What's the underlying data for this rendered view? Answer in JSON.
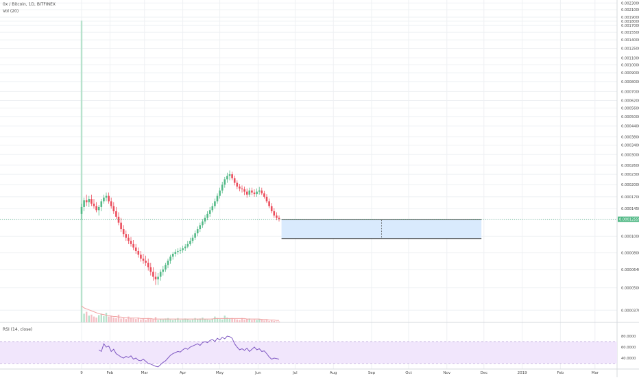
{
  "symbol_title": "0x / Bitcoin, 1D, BITFINEX",
  "volume_label": "Vol (20)",
  "rsi_title": "RSI (14, close)",
  "current_price_label": "0.00012559",
  "colors": {
    "up": "#53b987",
    "down": "#eb4d5c",
    "volume_up": "#b7e2cc",
    "volume_down": "#f4bfc4",
    "volume_ma": "#f0a0a0",
    "rsi_line": "#7e57c2",
    "rsi_band": "#f1e6fc",
    "projection_fill": "#d9eafd",
    "projection_border": "#2e2e2e",
    "price_tag": "#53b987",
    "grid": "#eef0f3"
  },
  "chart_data": [
    {
      "type": "candlestick",
      "title": "0x / Bitcoin, 1D, BITFINEX",
      "x_tick_labels": [
        "9",
        "Feb",
        "Mar",
        "Apr",
        "May",
        "Jun",
        "Jul",
        "Aug",
        "Sep",
        "Oct",
        "Nov",
        "Dec",
        "2019",
        "Feb",
        "Mar"
      ],
      "y_scale": "log",
      "y_tick_labels": [
        "0.00230000",
        "0.00210000",
        "0.00190000",
        "0.00180000",
        "0.00170000",
        "0.00155000",
        "0.00140000",
        "0.00125000",
        "0.00110000",
        "0.00100000",
        "0.00090000",
        "0.00080000",
        "0.00070000",
        "0.00062000",
        "0.00056000",
        "0.00050000",
        "0.00044000",
        "0.00038000",
        "0.00034000",
        "0.00030000",
        "0.00026000",
        "0.00023000",
        "0.00020000",
        "0.00017000",
        "0.00014500",
        "0.00012500",
        "0.00010000",
        "0.00008000",
        "0.00006400",
        "0.00005000",
        "0.00003700"
      ],
      "ylim": [
        3.2e-05,
        0.00235
      ],
      "grid": true,
      "series": [
        {
          "x": [
            "2018-01-09",
            "2018-01-11",
            "2018-01-13",
            "2018-01-15",
            "2018-01-17",
            "2018-01-19",
            "2018-01-21",
            "2018-01-23",
            "2018-01-25",
            "2018-01-27",
            "2018-01-29",
            "2018-01-31",
            "2018-02-02",
            "2018-02-04",
            "2018-02-06",
            "2018-02-08",
            "2018-02-10",
            "2018-02-12",
            "2018-02-14",
            "2018-02-16",
            "2018-02-18",
            "2018-02-20",
            "2018-02-22",
            "2018-02-24",
            "2018-02-26",
            "2018-02-28",
            "2018-03-02",
            "2018-03-04",
            "2018-03-06",
            "2018-03-08",
            "2018-03-10",
            "2018-03-12",
            "2018-03-14",
            "2018-03-16",
            "2018-03-18",
            "2018-03-20",
            "2018-03-22",
            "2018-03-24",
            "2018-03-26",
            "2018-03-28",
            "2018-03-30",
            "2018-04-01",
            "2018-04-03",
            "2018-04-05",
            "2018-04-07",
            "2018-04-09",
            "2018-04-11",
            "2018-04-13",
            "2018-04-15",
            "2018-04-17",
            "2018-04-19",
            "2018-04-21",
            "2018-04-23",
            "2018-04-25",
            "2018-04-27",
            "2018-04-29",
            "2018-05-01",
            "2018-05-03",
            "2018-05-05",
            "2018-05-07",
            "2018-05-09",
            "2018-05-11",
            "2018-05-13",
            "2018-05-15",
            "2018-05-17",
            "2018-05-19",
            "2018-05-21",
            "2018-05-23",
            "2018-05-25",
            "2018-05-27",
            "2018-05-29",
            "2018-05-31",
            "2018-06-02",
            "2018-06-04",
            "2018-06-06",
            "2018-06-08",
            "2018-06-10",
            "2018-06-12",
            "2018-06-14",
            "2018-06-16",
            "2018-06-18"
          ],
          "open": [
            0.000135,
            0.000148,
            0.000162,
            0.000158,
            0.000165,
            0.000155,
            0.00015,
            0.000142,
            0.000148,
            0.00016,
            0.000168,
            0.000172,
            0.00016,
            0.00015,
            0.00014,
            0.00013,
            0.00012,
            0.00011,
            0.000103,
            9.8e-05,
            9.4e-05,
            9e-05,
            8.6e-05,
            8.2e-05,
            7.8e-05,
            7.4e-05,
            7.2e-05,
            7e-05,
            6.6e-05,
            6.2e-05,
            5.8e-05,
            5.6e-05,
            5.8e-05,
            6.2e-05,
            6.4e-05,
            6.8e-05,
            7.2e-05,
            7.6e-05,
            7.9e-05,
            8.1e-05,
            8.2e-05,
            8.3e-05,
            8.5e-05,
            8.7e-05,
            9e-05,
            9.4e-05,
            9.8e-05,
            0.000104,
            0.00011,
            0.000116,
            0.000122,
            0.000128,
            0.000135,
            0.000142,
            0.00015,
            0.00016,
            0.000172,
            0.000185,
            0.0002,
            0.000215,
            0.000225,
            0.00023,
            0.000218,
            0.000205,
            0.000195,
            0.00019,
            0.000188,
            0.000182,
            0.000175,
            0.000185,
            0.00018,
            0.000176,
            0.000182,
            0.000185,
            0.000178,
            0.00017,
            0.00016,
            0.00015,
            0.00014,
            0.000132,
            0.000128
          ],
          "high": [
            0.000155,
            0.000168,
            0.000175,
            0.000172,
            0.000175,
            0.000165,
            0.000158,
            0.000152,
            0.000165,
            0.000175,
            0.00018,
            0.00018,
            0.000168,
            0.000158,
            0.000148,
            0.000138,
            0.000128,
            0.000116,
            0.000108,
            0.000103,
            9.9e-05,
            9.5e-05,
            9e-05,
            8.6e-05,
            8.2e-05,
            7.9e-05,
            7.7e-05,
            7.4e-05,
            7e-05,
            6.6e-05,
            6.2e-05,
            6.1e-05,
            6.4e-05,
            6.7e-05,
            7e-05,
            7.4e-05,
            7.8e-05,
            8.1e-05,
            8.4e-05,
            8.5e-05,
            8.6e-05,
            8.8e-05,
            9e-05,
            9.4e-05,
            9.8e-05,
            0.000102,
            0.000108,
            0.000114,
            0.00012,
            0.000126,
            0.000133,
            0.00014,
            0.000148,
            0.000156,
            0.000166,
            0.000178,
            0.000192,
            0.000208,
            0.000222,
            0.000235,
            0.000242,
            0.000238,
            0.000226,
            0.000212,
            0.000202,
            0.000198,
            0.000195,
            0.00019,
            0.000192,
            0.000192,
            0.000188,
            0.00019,
            0.000194,
            0.000192,
            0.000184,
            0.000176,
            0.000166,
            0.000156,
            0.000146,
            0.000138,
            0.000132
          ],
          "low": [
            0.000125,
            0.00014,
            0.00015,
            0.000148,
            0.00015,
            0.000145,
            0.000138,
            0.000132,
            0.00014,
            0.000155,
            0.00016,
            0.000155,
            0.000145,
            0.000135,
            0.000126,
            0.000116,
            0.000106,
            9.9e-05,
            9.4e-05,
            9e-05,
            8.7e-05,
            8.3e-05,
            7.9e-05,
            7.5e-05,
            7.1e-05,
            6.9e-05,
            6.7e-05,
            6.3e-05,
            5.9e-05,
            5.5e-05,
            5.2e-05,
            5.2e-05,
            5.5e-05,
            5.9e-05,
            6.2e-05,
            6.5e-05,
            6.9e-05,
            7.3e-05,
            7.6e-05,
            7.8e-05,
            7.9e-05,
            8e-05,
            8.2e-05,
            8.5e-05,
            8.8e-05,
            9.1e-05,
            9.5e-05,
            0.0001,
            0.000106,
            0.000112,
            0.000118,
            0.000124,
            0.00013,
            0.000138,
            0.000145,
            0.000155,
            0.000166,
            0.000178,
            0.000192,
            0.000205,
            0.000212,
            0.000212,
            0.000198,
            0.000188,
            0.000183,
            0.00018,
            0.000174,
            0.000168,
            0.00017,
            0.000174,
            0.00017,
            0.00017,
            0.000175,
            0.000174,
            0.000166,
            0.000156,
            0.000146,
            0.000136,
            0.000128,
            0.000124,
            0.000122
          ],
          "close": [
            0.000148,
            0.000162,
            0.000158,
            0.000165,
            0.000155,
            0.00015,
            0.000142,
            0.000148,
            0.00016,
            0.000168,
            0.000172,
            0.00016,
            0.00015,
            0.00014,
            0.00013,
            0.00012,
            0.00011,
            0.000103,
            9.8e-05,
            9.4e-05,
            9e-05,
            8.6e-05,
            8.2e-05,
            7.8e-05,
            7.4e-05,
            7.2e-05,
            7e-05,
            6.6e-05,
            6.2e-05,
            5.8e-05,
            5.6e-05,
            5.8e-05,
            6.2e-05,
            6.4e-05,
            6.8e-05,
            7.2e-05,
            7.6e-05,
            7.9e-05,
            8.1e-05,
            8.2e-05,
            8.3e-05,
            8.5e-05,
            8.7e-05,
            9e-05,
            9.4e-05,
            9.8e-05,
            0.000104,
            0.00011,
            0.000116,
            0.000122,
            0.000128,
            0.000135,
            0.000142,
            0.00015,
            0.00016,
            0.000172,
            0.000185,
            0.0002,
            0.000215,
            0.000225,
            0.00023,
            0.000218,
            0.000205,
            0.000195,
            0.00019,
            0.000188,
            0.000182,
            0.000175,
            0.000185,
            0.00018,
            0.000176,
            0.000182,
            0.000185,
            0.000178,
            0.00017,
            0.00016,
            0.00015,
            0.00014,
            0.000132,
            0.000128,
            0.000126
          ]
        }
      ]
    },
    {
      "type": "bar",
      "title": "Vol (20)",
      "x": [
        "2018-01-09",
        "2018-01-11",
        "2018-01-13",
        "2018-01-15",
        "2018-01-17",
        "2018-01-19",
        "2018-01-21",
        "2018-01-23",
        "2018-01-25",
        "2018-01-27",
        "2018-01-29",
        "2018-01-31",
        "2018-02-02",
        "2018-02-04",
        "2018-02-06",
        "2018-02-08",
        "2018-02-10",
        "2018-02-12",
        "2018-02-14",
        "2018-02-16",
        "2018-02-18",
        "2018-02-20",
        "2018-02-22",
        "2018-02-24",
        "2018-02-26",
        "2018-02-28",
        "2018-03-02",
        "2018-03-04",
        "2018-03-06",
        "2018-03-08",
        "2018-03-10",
        "2018-03-12",
        "2018-03-14",
        "2018-03-16",
        "2018-03-18",
        "2018-03-20",
        "2018-03-22",
        "2018-03-24",
        "2018-03-26",
        "2018-03-28",
        "2018-03-30",
        "2018-04-01",
        "2018-04-03",
        "2018-04-05",
        "2018-04-07",
        "2018-04-09",
        "2018-04-11",
        "2018-04-13",
        "2018-04-15",
        "2018-04-17",
        "2018-04-19",
        "2018-04-21",
        "2018-04-23",
        "2018-04-25",
        "2018-04-27",
        "2018-04-29",
        "2018-05-01",
        "2018-05-03",
        "2018-05-05",
        "2018-05-07",
        "2018-05-09",
        "2018-05-11",
        "2018-05-13",
        "2018-05-15",
        "2018-05-17",
        "2018-05-19",
        "2018-05-21",
        "2018-05-23",
        "2018-05-25",
        "2018-05-27",
        "2018-05-29",
        "2018-05-31",
        "2018-06-02",
        "2018-06-04",
        "2018-06-06",
        "2018-06-08",
        "2018-06-10",
        "2018-06-12",
        "2018-06-14",
        "2018-06-16",
        "2018-06-18"
      ],
      "values": [
        100,
        18,
        22,
        14,
        16,
        12,
        10,
        15,
        18,
        13,
        20,
        12,
        14,
        10,
        9,
        16,
        8,
        10,
        7,
        12,
        9,
        8,
        7,
        10,
        6,
        8,
        5,
        9,
        7,
        6,
        11,
        5,
        7,
        6,
        8,
        9,
        6,
        5,
        7,
        9,
        5,
        6,
        8,
        7,
        5,
        6,
        9,
        7,
        8,
        10,
        7,
        6,
        5,
        8,
        12,
        9,
        7,
        6,
        14,
        10,
        8,
        9,
        7,
        6,
        5,
        9,
        6,
        7,
        8,
        5,
        6,
        5,
        7,
        6,
        4,
        5,
        3,
        4,
        3,
        2,
        2
      ],
      "moving_average": [
        34,
        30,
        28,
        26,
        24,
        22,
        20,
        18,
        17,
        16,
        15,
        14,
        13,
        12,
        12,
        11,
        11,
        10,
        10,
        9,
        9,
        9,
        9,
        9,
        8,
        8,
        8,
        8,
        8,
        7,
        7,
        7,
        7,
        7,
        7,
        7,
        7,
        7,
        7,
        7,
        7,
        7,
        7,
        7,
        7,
        7,
        7,
        7,
        7,
        7,
        7,
        7,
        7,
        7,
        8,
        8,
        8,
        8,
        8,
        8,
        8,
        8,
        8,
        8,
        8,
        8,
        8,
        7,
        7,
        7,
        7,
        7,
        7,
        6,
        6,
        6,
        5,
        5,
        5,
        4,
        4
      ]
    },
    {
      "type": "line",
      "title": "RSI (14, close)",
      "y_tick_labels": [
        "80.0000",
        "60.0000",
        "40.0000"
      ],
      "ylim": [
        20,
        100
      ],
      "band": [
        30,
        70
      ],
      "x": [
        "2018-01-23",
        "2018-01-25",
        "2018-01-27",
        "2018-01-29",
        "2018-01-31",
        "2018-02-02",
        "2018-02-04",
        "2018-02-06",
        "2018-02-08",
        "2018-02-10",
        "2018-02-12",
        "2018-02-14",
        "2018-02-16",
        "2018-02-18",
        "2018-02-20",
        "2018-02-22",
        "2018-02-24",
        "2018-02-26",
        "2018-02-28",
        "2018-03-02",
        "2018-03-04",
        "2018-03-06",
        "2018-03-08",
        "2018-03-10",
        "2018-03-12",
        "2018-03-14",
        "2018-03-16",
        "2018-03-18",
        "2018-03-20",
        "2018-03-22",
        "2018-03-24",
        "2018-03-26",
        "2018-03-28",
        "2018-03-30",
        "2018-04-01",
        "2018-04-03",
        "2018-04-05",
        "2018-04-07",
        "2018-04-09",
        "2018-04-11",
        "2018-04-13",
        "2018-04-15",
        "2018-04-17",
        "2018-04-19",
        "2018-04-21",
        "2018-04-23",
        "2018-04-25",
        "2018-04-27",
        "2018-04-29",
        "2018-05-01",
        "2018-05-03",
        "2018-05-05",
        "2018-05-07",
        "2018-05-09",
        "2018-05-11",
        "2018-05-13",
        "2018-05-15",
        "2018-05-17",
        "2018-05-19",
        "2018-05-21",
        "2018-05-23",
        "2018-05-25",
        "2018-05-27",
        "2018-05-29",
        "2018-05-31",
        "2018-06-02",
        "2018-06-04",
        "2018-06-06",
        "2018-06-08",
        "2018-06-10",
        "2018-06-12",
        "2018-06-14",
        "2018-06-16",
        "2018-06-18"
      ],
      "values": [
        55,
        52,
        66,
        60,
        62,
        52,
        56,
        48,
        45,
        42,
        40,
        43,
        41,
        44,
        38,
        40,
        36,
        35,
        38,
        34,
        30,
        29,
        27,
        25,
        24,
        28,
        32,
        35,
        40,
        45,
        48,
        50,
        52,
        51,
        55,
        58,
        56,
        60,
        62,
        64,
        66,
        63,
        68,
        70,
        68,
        72,
        74,
        70,
        76,
        73,
        78,
        75,
        80,
        79,
        76,
        66,
        60,
        55,
        57,
        54,
        58,
        52,
        56,
        60,
        55,
        57,
        52,
        53,
        48,
        42,
        38,
        40,
        39,
        38
      ]
    }
  ]
}
